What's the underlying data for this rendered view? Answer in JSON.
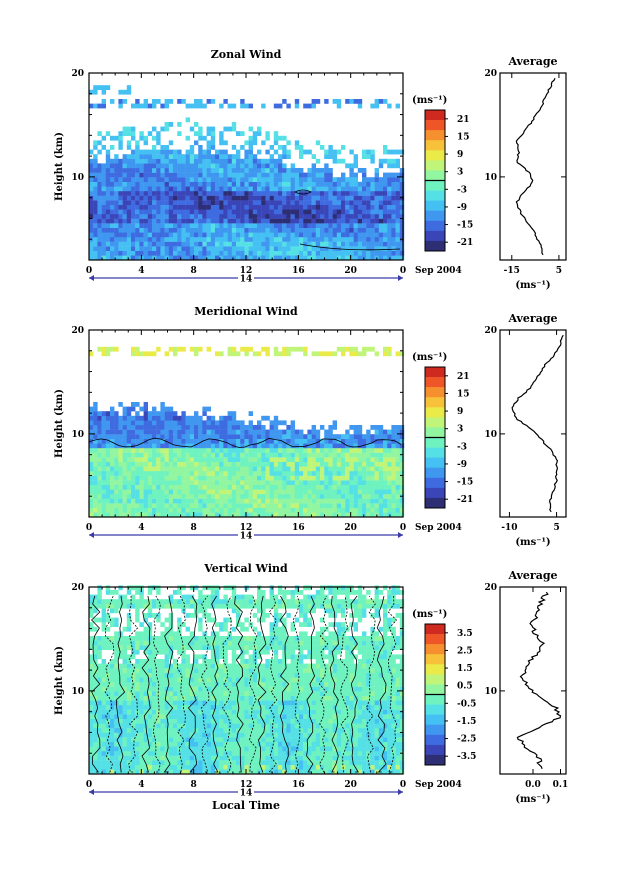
{
  "figure": {
    "date_label": "Sep 2004",
    "day_label": "14",
    "xlabel": "Local Time",
    "ylabel": "Height (km)",
    "avg_title": "Average",
    "unit_label": "(ms⁻¹)",
    "colorbar_unit_label": "(ms⁻¹)"
  },
  "chart_data": [
    {
      "type": "heatmap",
      "title": "Zonal Wind",
      "xlabel": "",
      "ylabel": "Height (km)",
      "xlim": [
        0,
        24
      ],
      "ylim": [
        2,
        20
      ],
      "xticks": [
        "0",
        "4",
        "8",
        "12",
        "16",
        "20",
        "0"
      ],
      "yticks": [
        "10",
        "20"
      ],
      "colorbar": {
        "range": [
          -24,
          24
        ],
        "ticks": [
          "21",
          "15",
          "9",
          "3",
          "-3",
          "-9",
          "-15",
          "-21"
        ],
        "zero_line": true
      },
      "profile": {
        "title": "Average",
        "xlim": [
          -20,
          8
        ],
        "xticks": [
          "-15",
          "5"
        ],
        "ylim": [
          2,
          20
        ],
        "yticks": [
          "10",
          "20"
        ],
        "series": [
          {
            "h": 2.5,
            "v": -2
          },
          {
            "h": 3.5,
            "v": -3
          },
          {
            "h": 4.5,
            "v": -5
          },
          {
            "h": 5.5,
            "v": -8
          },
          {
            "h": 6.5,
            "v": -11
          },
          {
            "h": 7.5,
            "v": -13
          },
          {
            "h": 8.5,
            "v": -10
          },
          {
            "h": 9.5,
            "v": -6
          },
          {
            "h": 10.5,
            "v": -8
          },
          {
            "h": 11.5,
            "v": -13
          },
          {
            "h": 12.5,
            "v": -12
          },
          {
            "h": 13.5,
            "v": -13
          },
          {
            "h": 14.5,
            "v": -9
          },
          {
            "h": 15.5,
            "v": -6
          },
          {
            "h": 16.5,
            "v": -3
          },
          {
            "h": 17.5,
            "v": -1
          },
          {
            "h": 18.5,
            "v": 1
          },
          {
            "h": 19.5,
            "v": 3
          }
        ]
      }
    },
    {
      "type": "heatmap",
      "title": "Meridional Wind",
      "xlabel": "",
      "ylabel": "Height (km)",
      "xlim": [
        0,
        24
      ],
      "ylim": [
        2,
        20
      ],
      "xticks": [
        "0",
        "4",
        "8",
        "12",
        "16",
        "20",
        "0"
      ],
      "yticks": [
        "10",
        "20"
      ],
      "colorbar": {
        "range": [
          -24,
          24
        ],
        "ticks": [
          "21",
          "15",
          "9",
          "3",
          "-3",
          "-9",
          "-15",
          "-21"
        ],
        "zero_line": true
      },
      "profile": {
        "title": "Average",
        "xlim": [
          -13,
          8
        ],
        "xticks": [
          "-10",
          "5"
        ],
        "ylim": [
          2,
          20
        ],
        "yticks": [
          "10",
          "20"
        ],
        "series": [
          {
            "h": 2.5,
            "v": 3
          },
          {
            "h": 3.5,
            "v": 3
          },
          {
            "h": 4.5,
            "v": 4
          },
          {
            "h": 5.5,
            "v": 5
          },
          {
            "h": 6.5,
            "v": 5
          },
          {
            "h": 7.5,
            "v": 5
          },
          {
            "h": 8.5,
            "v": 3
          },
          {
            "h": 9.5,
            "v": 0
          },
          {
            "h": 10.5,
            "v": -3
          },
          {
            "h": 11.5,
            "v": -8
          },
          {
            "h": 12.5,
            "v": -9
          },
          {
            "h": 13.5,
            "v": -7
          },
          {
            "h": 14.5,
            "v": -3
          },
          {
            "h": 15.5,
            "v": -1
          },
          {
            "h": 16.5,
            "v": 1
          },
          {
            "h": 17.5,
            "v": 4
          },
          {
            "h": 18.5,
            "v": 6
          },
          {
            "h": 19.5,
            "v": 7
          }
        ]
      }
    },
    {
      "type": "heatmap",
      "title": "Vertical Wind",
      "xlabel": "Local Time",
      "ylabel": "Height (km)",
      "xlim": [
        0,
        24
      ],
      "ylim": [
        2,
        20
      ],
      "xticks": [
        "0",
        "4",
        "8",
        "12",
        "16",
        "20",
        "0"
      ],
      "yticks": [
        "10",
        "20"
      ],
      "colorbar": {
        "range": [
          -4,
          4
        ],
        "ticks": [
          "3.5",
          "2.5",
          "1.5",
          "0.5",
          "-0.5",
          "-1.5",
          "-2.5",
          "-3.5"
        ],
        "zero_line": true
      },
      "profile": {
        "title": "Average",
        "xlim": [
          -0.12,
          0.12
        ],
        "xticks": [
          "0.0",
          "0.1"
        ],
        "ylim": [
          2,
          20
        ],
        "yticks": [
          "10",
          "20"
        ],
        "series": [
          {
            "h": 2.5,
            "v": 0.03
          },
          {
            "h": 3.5,
            "v": 0.02
          },
          {
            "h": 4.5,
            "v": -0.02
          },
          {
            "h": 5.5,
            "v": -0.05
          },
          {
            "h": 6.5,
            "v": 0.02
          },
          {
            "h": 7.5,
            "v": 0.1
          },
          {
            "h": 8.5,
            "v": 0.08
          },
          {
            "h": 9.5,
            "v": 0.02
          },
          {
            "h": 10.5,
            "v": -0.02
          },
          {
            "h": 11.5,
            "v": -0.04
          },
          {
            "h": 12.5,
            "v": -0.02
          },
          {
            "h": 13.5,
            "v": 0.01
          },
          {
            "h": 14.5,
            "v": 0.04
          },
          {
            "h": 15.5,
            "v": 0.01
          },
          {
            "h": 16.5,
            "v": -0.01
          },
          {
            "h": 17.5,
            "v": 0.02
          },
          {
            "h": 18.5,
            "v": 0.03
          },
          {
            "h": 19.5,
            "v": 0.05
          }
        ]
      }
    }
  ]
}
